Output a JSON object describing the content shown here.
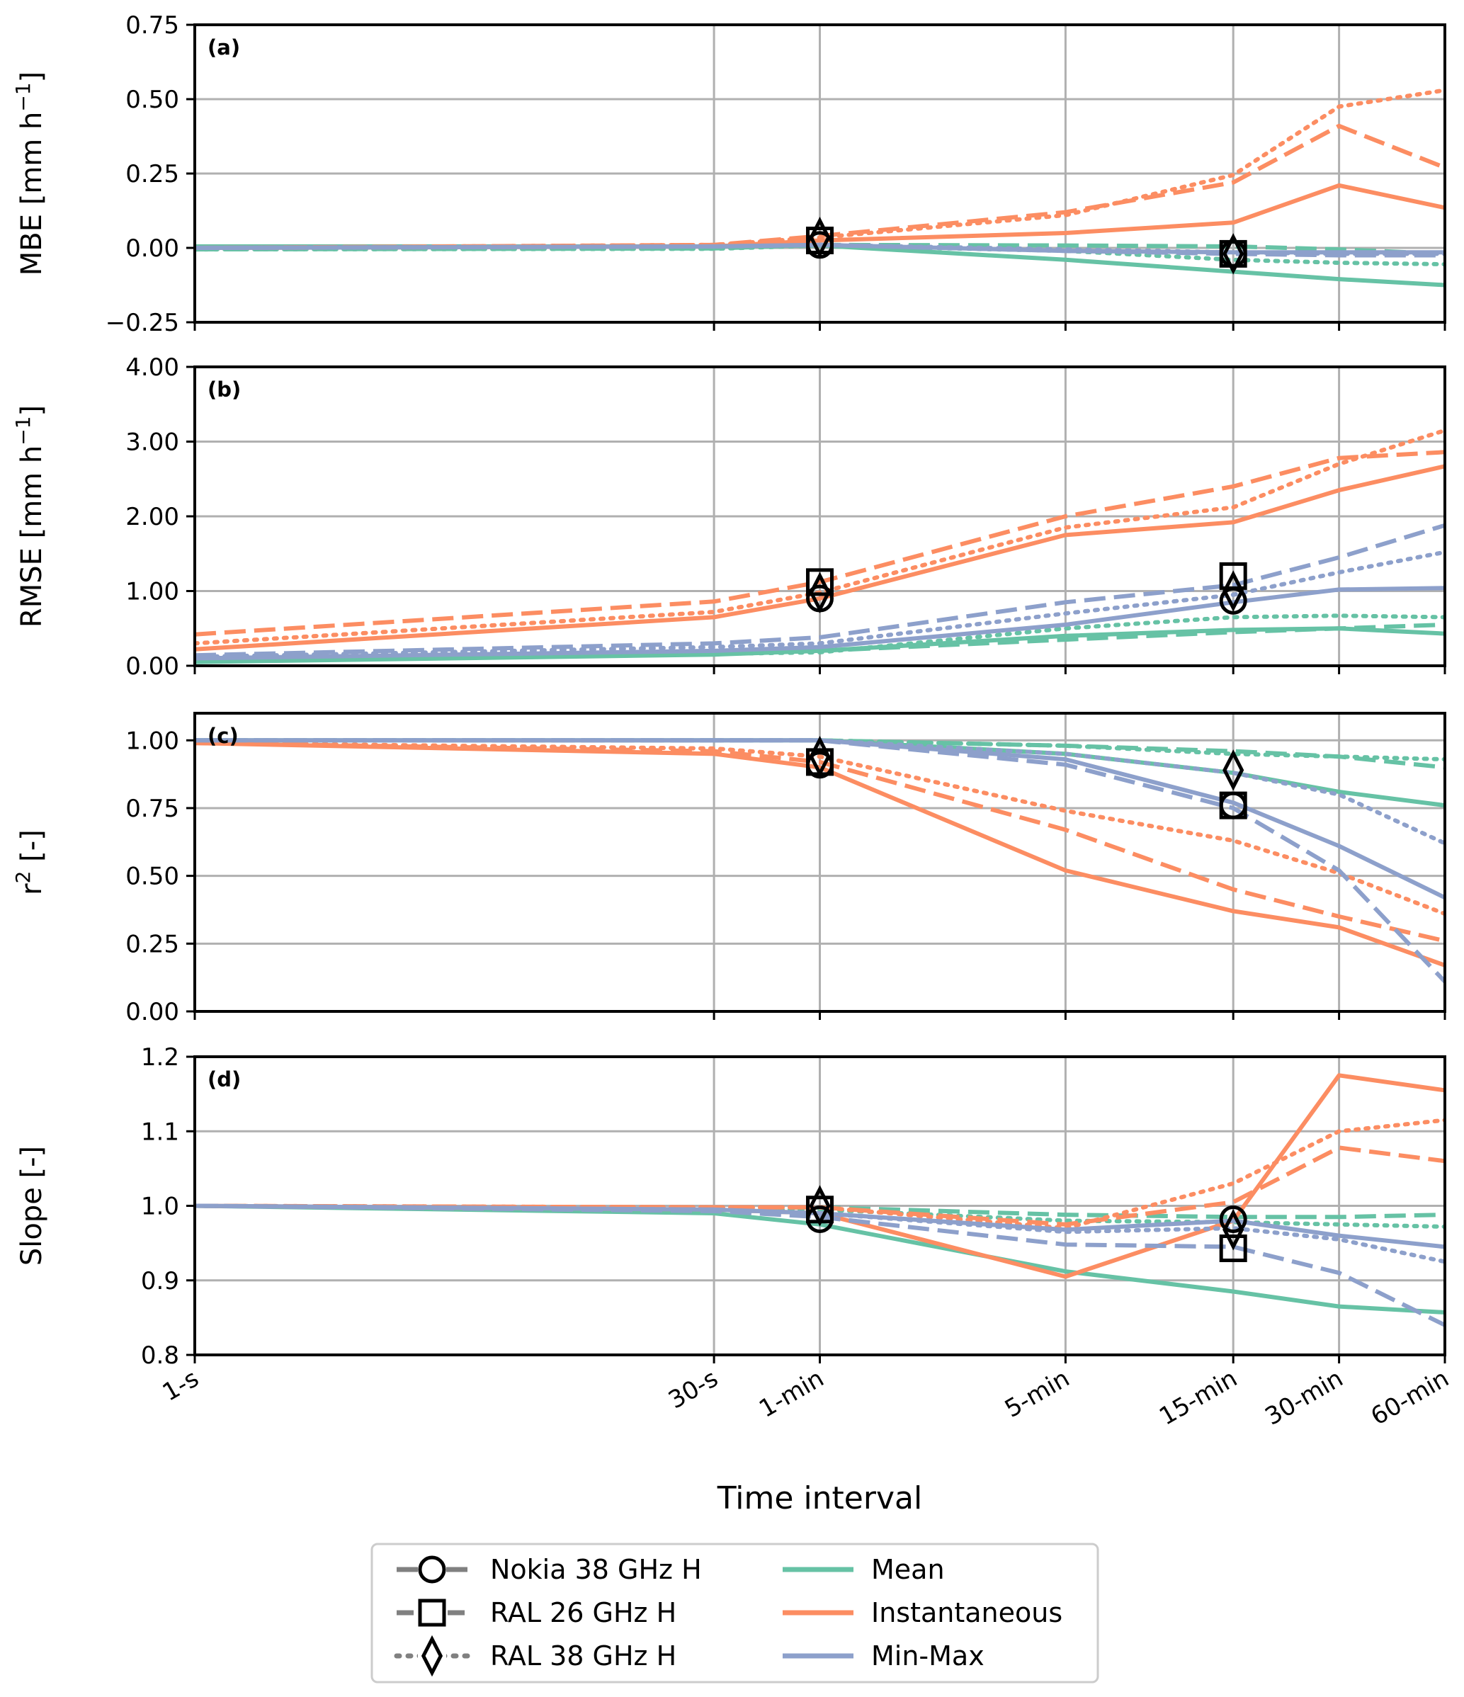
{
  "chart_data": [
    {
      "type": "line",
      "panel_label": "(a)",
      "ylabel": "MBE [mm h",
      "ylabel_sup": "−1",
      "ylabel_suffix": "]",
      "ylim": [
        -0.25,
        0.75
      ],
      "yticks": [
        -0.25,
        0.0,
        0.25,
        0.5,
        0.75
      ],
      "ytick_labels": [
        "−0.25",
        "0.00",
        "0.25",
        "0.50",
        "0.75"
      ],
      "series": [
        {
          "name": "Nokia 38 GHz H",
          "aggregation": "Mean",
          "values": [
            0.005,
            0.005,
            0.008,
            -0.04,
            -0.08,
            -0.105,
            -0.125
          ]
        },
        {
          "name": "RAL 26 GHz H",
          "aggregation": "Mean",
          "values": [
            -0.005,
            -0.002,
            0.01,
            0.008,
            0.005,
            -0.005,
            -0.02
          ]
        },
        {
          "name": "RAL 38 GHz H",
          "aggregation": "Mean",
          "values": [
            -0.005,
            -0.003,
            0.008,
            -0.01,
            -0.04,
            -0.05,
            -0.055
          ]
        },
        {
          "name": "Nokia 38 GHz H",
          "aggregation": "Instantaneous",
          "values": [
            0.0,
            0.005,
            0.025,
            0.05,
            0.085,
            0.21,
            0.135
          ]
        },
        {
          "name": "RAL 26 GHz H",
          "aggregation": "Instantaneous",
          "values": [
            0.0,
            0.01,
            0.04,
            0.12,
            0.22,
            0.41,
            0.27
          ]
        },
        {
          "name": "RAL 38 GHz H",
          "aggregation": "Instantaneous",
          "values": [
            0.0,
            0.01,
            0.035,
            0.11,
            0.245,
            0.475,
            0.53
          ]
        },
        {
          "name": "Nokia 38 GHz H",
          "aggregation": "Min-Max",
          "values": [
            0.0,
            0.005,
            0.01,
            -0.01,
            -0.015,
            -0.015,
            -0.015
          ]
        },
        {
          "name": "RAL 26 GHz H",
          "aggregation": "Min-Max",
          "values": [
            0.0,
            0.005,
            0.01,
            -0.01,
            -0.02,
            -0.025,
            -0.025
          ]
        },
        {
          "name": "RAL 38 GHz H",
          "aggregation": "Min-Max",
          "values": [
            0.0,
            0.005,
            0.01,
            -0.005,
            -0.015,
            -0.02,
            -0.02
          ]
        }
      ],
      "markers": [
        {
          "name": "Nokia 38 GHz H",
          "x": "1-min",
          "y": 0.01
        },
        {
          "name": "RAL 26 GHz H",
          "x": "1-min",
          "y": 0.025
        },
        {
          "name": "RAL 38 GHz H",
          "x": "1-min",
          "y": 0.035
        },
        {
          "name": "Nokia 38 GHz H",
          "x": "15-min",
          "y": -0.02
        },
        {
          "name": "RAL 26 GHz H",
          "x": "15-min",
          "y": -0.02
        },
        {
          "name": "RAL 38 GHz H",
          "x": "15-min",
          "y": -0.02
        }
      ]
    },
    {
      "type": "line",
      "panel_label": "(b)",
      "ylabel": "RMSE [mm h",
      "ylabel_sup": "−1",
      "ylabel_suffix": "]",
      "ylim": [
        0,
        4
      ],
      "yticks": [
        0,
        1,
        2,
        3,
        4
      ],
      "ytick_labels": [
        "0.00",
        "1.00",
        "2.00",
        "3.00",
        "4.00"
      ],
      "series": [
        {
          "name": "Nokia 38 GHz H",
          "aggregation": "Mean",
          "values": [
            0.05,
            0.15,
            0.2,
            0.4,
            0.48,
            0.5,
            0.43
          ]
        },
        {
          "name": "RAL 26 GHz H",
          "aggregation": "Mean",
          "values": [
            0.08,
            0.17,
            0.2,
            0.35,
            0.45,
            0.5,
            0.55
          ]
        },
        {
          "name": "RAL 38 GHz H",
          "aggregation": "Mean",
          "values": [
            0.06,
            0.16,
            0.18,
            0.5,
            0.65,
            0.67,
            0.65
          ]
        },
        {
          "name": "Nokia 38 GHz H",
          "aggregation": "Instantaneous",
          "values": [
            0.22,
            0.65,
            0.9,
            1.75,
            1.92,
            2.35,
            2.67
          ]
        },
        {
          "name": "RAL 26 GHz H",
          "aggregation": "Instantaneous",
          "values": [
            0.42,
            0.86,
            1.12,
            2.0,
            2.4,
            2.78,
            2.86
          ]
        },
        {
          "name": "RAL 38 GHz H",
          "aggregation": "Instantaneous",
          "values": [
            0.3,
            0.72,
            0.98,
            1.85,
            2.12,
            2.7,
            3.15
          ]
        },
        {
          "name": "Nokia 38 GHz H",
          "aggregation": "Min-Max",
          "values": [
            0.1,
            0.2,
            0.25,
            0.55,
            0.85,
            1.02,
            1.04
          ]
        },
        {
          "name": "RAL 26 GHz H",
          "aggregation": "Min-Max",
          "values": [
            0.14,
            0.3,
            0.38,
            0.85,
            1.08,
            1.45,
            1.88
          ]
        },
        {
          "name": "RAL 38 GHz H",
          "aggregation": "Min-Max",
          "values": [
            0.12,
            0.25,
            0.3,
            0.7,
            0.95,
            1.25,
            1.52
          ]
        }
      ],
      "markers": [
        {
          "name": "Nokia 38 GHz H",
          "x": "1-min",
          "y": 0.9
        },
        {
          "name": "RAL 26 GHz H",
          "x": "1-min",
          "y": 1.12
        },
        {
          "name": "RAL 38 GHz H",
          "x": "1-min",
          "y": 0.98
        },
        {
          "name": "Nokia 38 GHz H",
          "x": "15-min",
          "y": 0.87
        },
        {
          "name": "RAL 26 GHz H",
          "x": "15-min",
          "y": 1.2
        },
        {
          "name": "RAL 38 GHz H",
          "x": "15-min",
          "y": 1.0
        }
      ]
    },
    {
      "type": "line",
      "panel_label": "(c)",
      "ylabel": "r",
      "ylabel_sup": "2",
      "ylabel_suffix": " [-]",
      "ylim": [
        0,
        1.1
      ],
      "yticks": [
        0,
        0.25,
        0.5,
        0.75,
        1.0
      ],
      "ytick_labels": [
        "0.00",
        "0.25",
        "0.50",
        "0.75",
        "1.00"
      ],
      "series": [
        {
          "name": "Nokia 38 GHz H",
          "aggregation": "Mean",
          "values": [
            1.0,
            1.0,
            1.0,
            0.95,
            0.88,
            0.81,
            0.76
          ]
        },
        {
          "name": "RAL 26 GHz H",
          "aggregation": "Mean",
          "values": [
            1.0,
            1.0,
            1.0,
            0.98,
            0.96,
            0.94,
            0.9
          ]
        },
        {
          "name": "RAL 38 GHz H",
          "aggregation": "Mean",
          "values": [
            1.0,
            1.0,
            1.0,
            0.98,
            0.95,
            0.94,
            0.93
          ]
        },
        {
          "name": "Nokia 38 GHz H",
          "aggregation": "Instantaneous",
          "values": [
            0.99,
            0.95,
            0.9,
            0.52,
            0.37,
            0.31,
            0.17
          ]
        },
        {
          "name": "RAL 26 GHz H",
          "aggregation": "Instantaneous",
          "values": [
            0.99,
            0.96,
            0.92,
            0.67,
            0.45,
            0.35,
            0.26
          ]
        },
        {
          "name": "RAL 38 GHz H",
          "aggregation": "Instantaneous",
          "values": [
            0.99,
            0.97,
            0.94,
            0.74,
            0.63,
            0.51,
            0.36
          ]
        },
        {
          "name": "Nokia 38 GHz H",
          "aggregation": "Min-Max",
          "values": [
            1.0,
            1.0,
            1.0,
            0.93,
            0.77,
            0.61,
            0.42
          ]
        },
        {
          "name": "RAL 26 GHz H",
          "aggregation": "Min-Max",
          "values": [
            1.0,
            1.0,
            1.0,
            0.91,
            0.75,
            0.52,
            0.11
          ]
        },
        {
          "name": "RAL 38 GHz H",
          "aggregation": "Min-Max",
          "values": [
            1.0,
            1.0,
            1.0,
            0.95,
            0.88,
            0.8,
            0.62
          ]
        }
      ],
      "markers": [
        {
          "name": "Nokia 38 GHz H",
          "x": "1-min",
          "y": 0.91
        },
        {
          "name": "RAL 26 GHz H",
          "x": "1-min",
          "y": 0.92
        },
        {
          "name": "RAL 38 GHz H",
          "x": "1-min",
          "y": 0.94
        },
        {
          "name": "Nokia 38 GHz H",
          "x": "15-min",
          "y": 0.76
        },
        {
          "name": "RAL 26 GHz H",
          "x": "15-min",
          "y": 0.76
        },
        {
          "name": "RAL 38 GHz H",
          "x": "15-min",
          "y": 0.89
        }
      ]
    },
    {
      "type": "line",
      "panel_label": "(d)",
      "ylabel": "Slope [-]",
      "ylabel_sup": "",
      "ylabel_suffix": "",
      "ylim": [
        0.8,
        1.2
      ],
      "yticks": [
        0.8,
        0.9,
        1.0,
        1.1,
        1.2
      ],
      "ytick_labels": [
        "0.8",
        "0.9",
        "1.0",
        "1.1",
        "1.2"
      ],
      "series": [
        {
          "name": "Nokia 38 GHz H",
          "aggregation": "Mean",
          "values": [
            1.0,
            0.99,
            0.975,
            0.912,
            0.885,
            0.865,
            0.857
          ]
        },
        {
          "name": "RAL 26 GHz H",
          "aggregation": "Mean",
          "values": [
            1.0,
            0.997,
            0.998,
            0.988,
            0.985,
            0.985,
            0.988
          ]
        },
        {
          "name": "RAL 38 GHz H",
          "aggregation": "Mean",
          "values": [
            1.0,
            0.995,
            0.995,
            0.98,
            0.978,
            0.975,
            0.972
          ]
        },
        {
          "name": "Nokia 38 GHz H",
          "aggregation": "Instantaneous",
          "values": [
            1.0,
            0.995,
            0.99,
            0.905,
            0.98,
            1.175,
            1.155
          ]
        },
        {
          "name": "RAL 26 GHz H",
          "aggregation": "Instantaneous",
          "values": [
            1.0,
            0.998,
            0.998,
            0.975,
            1.005,
            1.078,
            1.06
          ]
        },
        {
          "name": "RAL 38 GHz H",
          "aggregation": "Instantaneous",
          "values": [
            1.0,
            0.998,
            0.998,
            0.97,
            1.03,
            1.1,
            1.115
          ]
        },
        {
          "name": "Nokia 38 GHz H",
          "aggregation": "Min-Max",
          "values": [
            1.0,
            0.995,
            0.99,
            0.968,
            0.98,
            0.96,
            0.945
          ]
        },
        {
          "name": "RAL 26 GHz H",
          "aggregation": "Min-Max",
          "values": [
            1.0,
            0.993,
            0.985,
            0.948,
            0.945,
            0.91,
            0.84
          ]
        },
        {
          "name": "RAL 38 GHz H",
          "aggregation": "Min-Max",
          "values": [
            1.0,
            0.995,
            0.99,
            0.965,
            0.97,
            0.955,
            0.925
          ]
        }
      ],
      "markers": [
        {
          "name": "Nokia 38 GHz H",
          "x": "1-min",
          "y": 0.982
        },
        {
          "name": "RAL 26 GHz H",
          "x": "1-min",
          "y": 0.995
        },
        {
          "name": "RAL 38 GHz H",
          "x": "1-min",
          "y": 1.0
        },
        {
          "name": "Nokia 38 GHz H",
          "x": "15-min",
          "y": 0.982
        },
        {
          "name": "RAL 26 GHz H",
          "x": "15-min",
          "y": 0.943
        },
        {
          "name": "RAL 38 GHz H",
          "x": "15-min",
          "y": 0.968
        }
      ]
    }
  ],
  "x_axis": {
    "label": "Time interval",
    "categories": [
      "1-s",
      "30-s",
      "1-min",
      "5-min",
      "15-min",
      "30-min",
      "60-min"
    ],
    "seconds": [
      1,
      30,
      60,
      300,
      900,
      1800,
      3600
    ],
    "scale": "log"
  },
  "legend": {
    "links": [
      {
        "label": "Nokia 38 GHz H",
        "marker": "circle",
        "dash": "solid"
      },
      {
        "label": "RAL 26 GHz H",
        "marker": "square",
        "dash": "dashed"
      },
      {
        "label": "RAL 38 GHz H",
        "marker": "diamond",
        "dash": "dotted"
      }
    ],
    "aggregations": [
      {
        "label": "Mean",
        "color": "#66c2a5"
      },
      {
        "label": "Instantaneous",
        "color": "#fc8d62"
      },
      {
        "label": "Min-Max",
        "color": "#8da0cb"
      }
    ]
  },
  "colors": {
    "mean": "#66c2a5",
    "instantaneous": "#fc8d62",
    "minmax": "#8da0cb",
    "grid": "#b0b0b0",
    "link_line": "#808080"
  }
}
